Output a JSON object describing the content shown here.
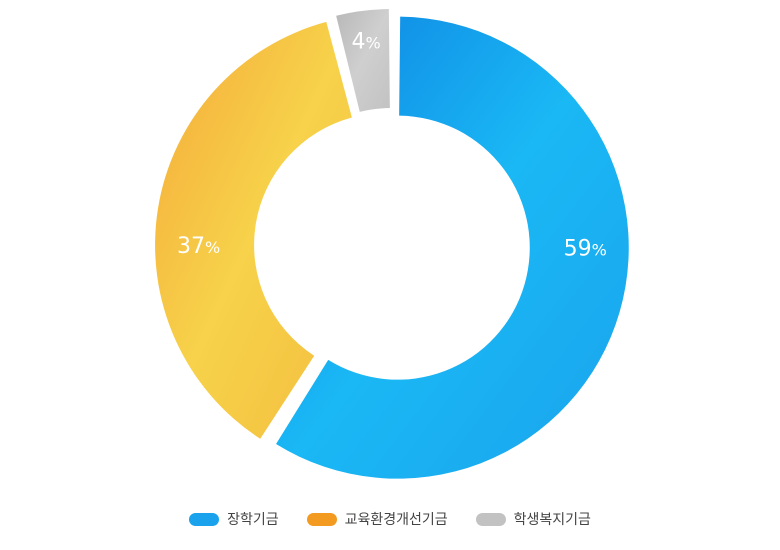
{
  "chart_data": {
    "type": "pie",
    "variant": "donut",
    "slices": [
      {
        "name": "장학기금",
        "value": 59,
        "label": "59",
        "color": "#1aa3ec"
      },
      {
        "name": "교육환경개선기금",
        "value": 37,
        "label": "37",
        "color": "#f5b83a"
      },
      {
        "name": "학생복지기금",
        "value": 4,
        "label": "4",
        "color": "#c2c2c2"
      }
    ],
    "percent_sign": "%",
    "legend_position": "bottom-center",
    "start_angle_deg": 0,
    "direction": "clockwise"
  },
  "legend": {
    "items": [
      {
        "label": "장학기금",
        "color": "#1aa3ec"
      },
      {
        "label": "교육환경개선기금",
        "color": "#f39a21"
      },
      {
        "label": "학생복지기금",
        "color": "#c2c2c2"
      }
    ]
  }
}
